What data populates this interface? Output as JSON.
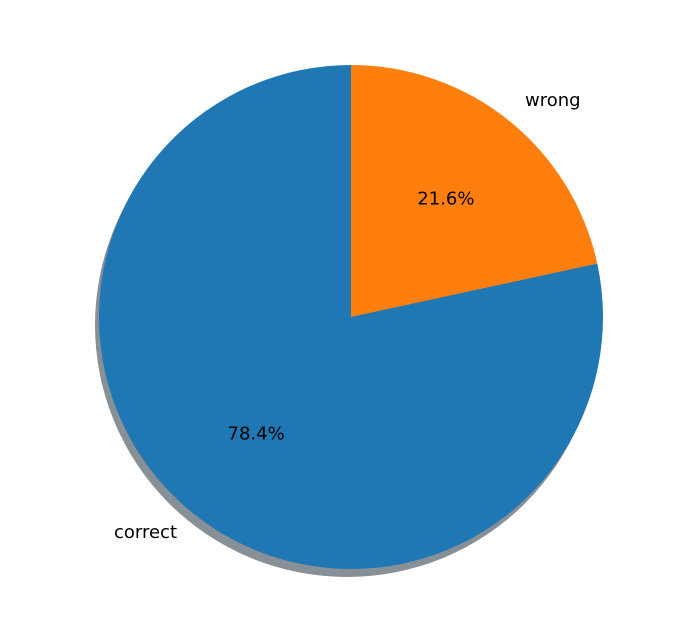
{
  "chart_data": {
    "type": "pie",
    "labels": [
      "wrong",
      "correct"
    ],
    "values": [
      21.6,
      78.4
    ],
    "autopct_labels": [
      "21.6%",
      "78.4%"
    ],
    "colors": [
      "#ff7f0e",
      "#1f77b4"
    ],
    "start_angle_deg": 90,
    "direction": "clockwise",
    "shadow": true,
    "title": "",
    "legend": "none"
  }
}
